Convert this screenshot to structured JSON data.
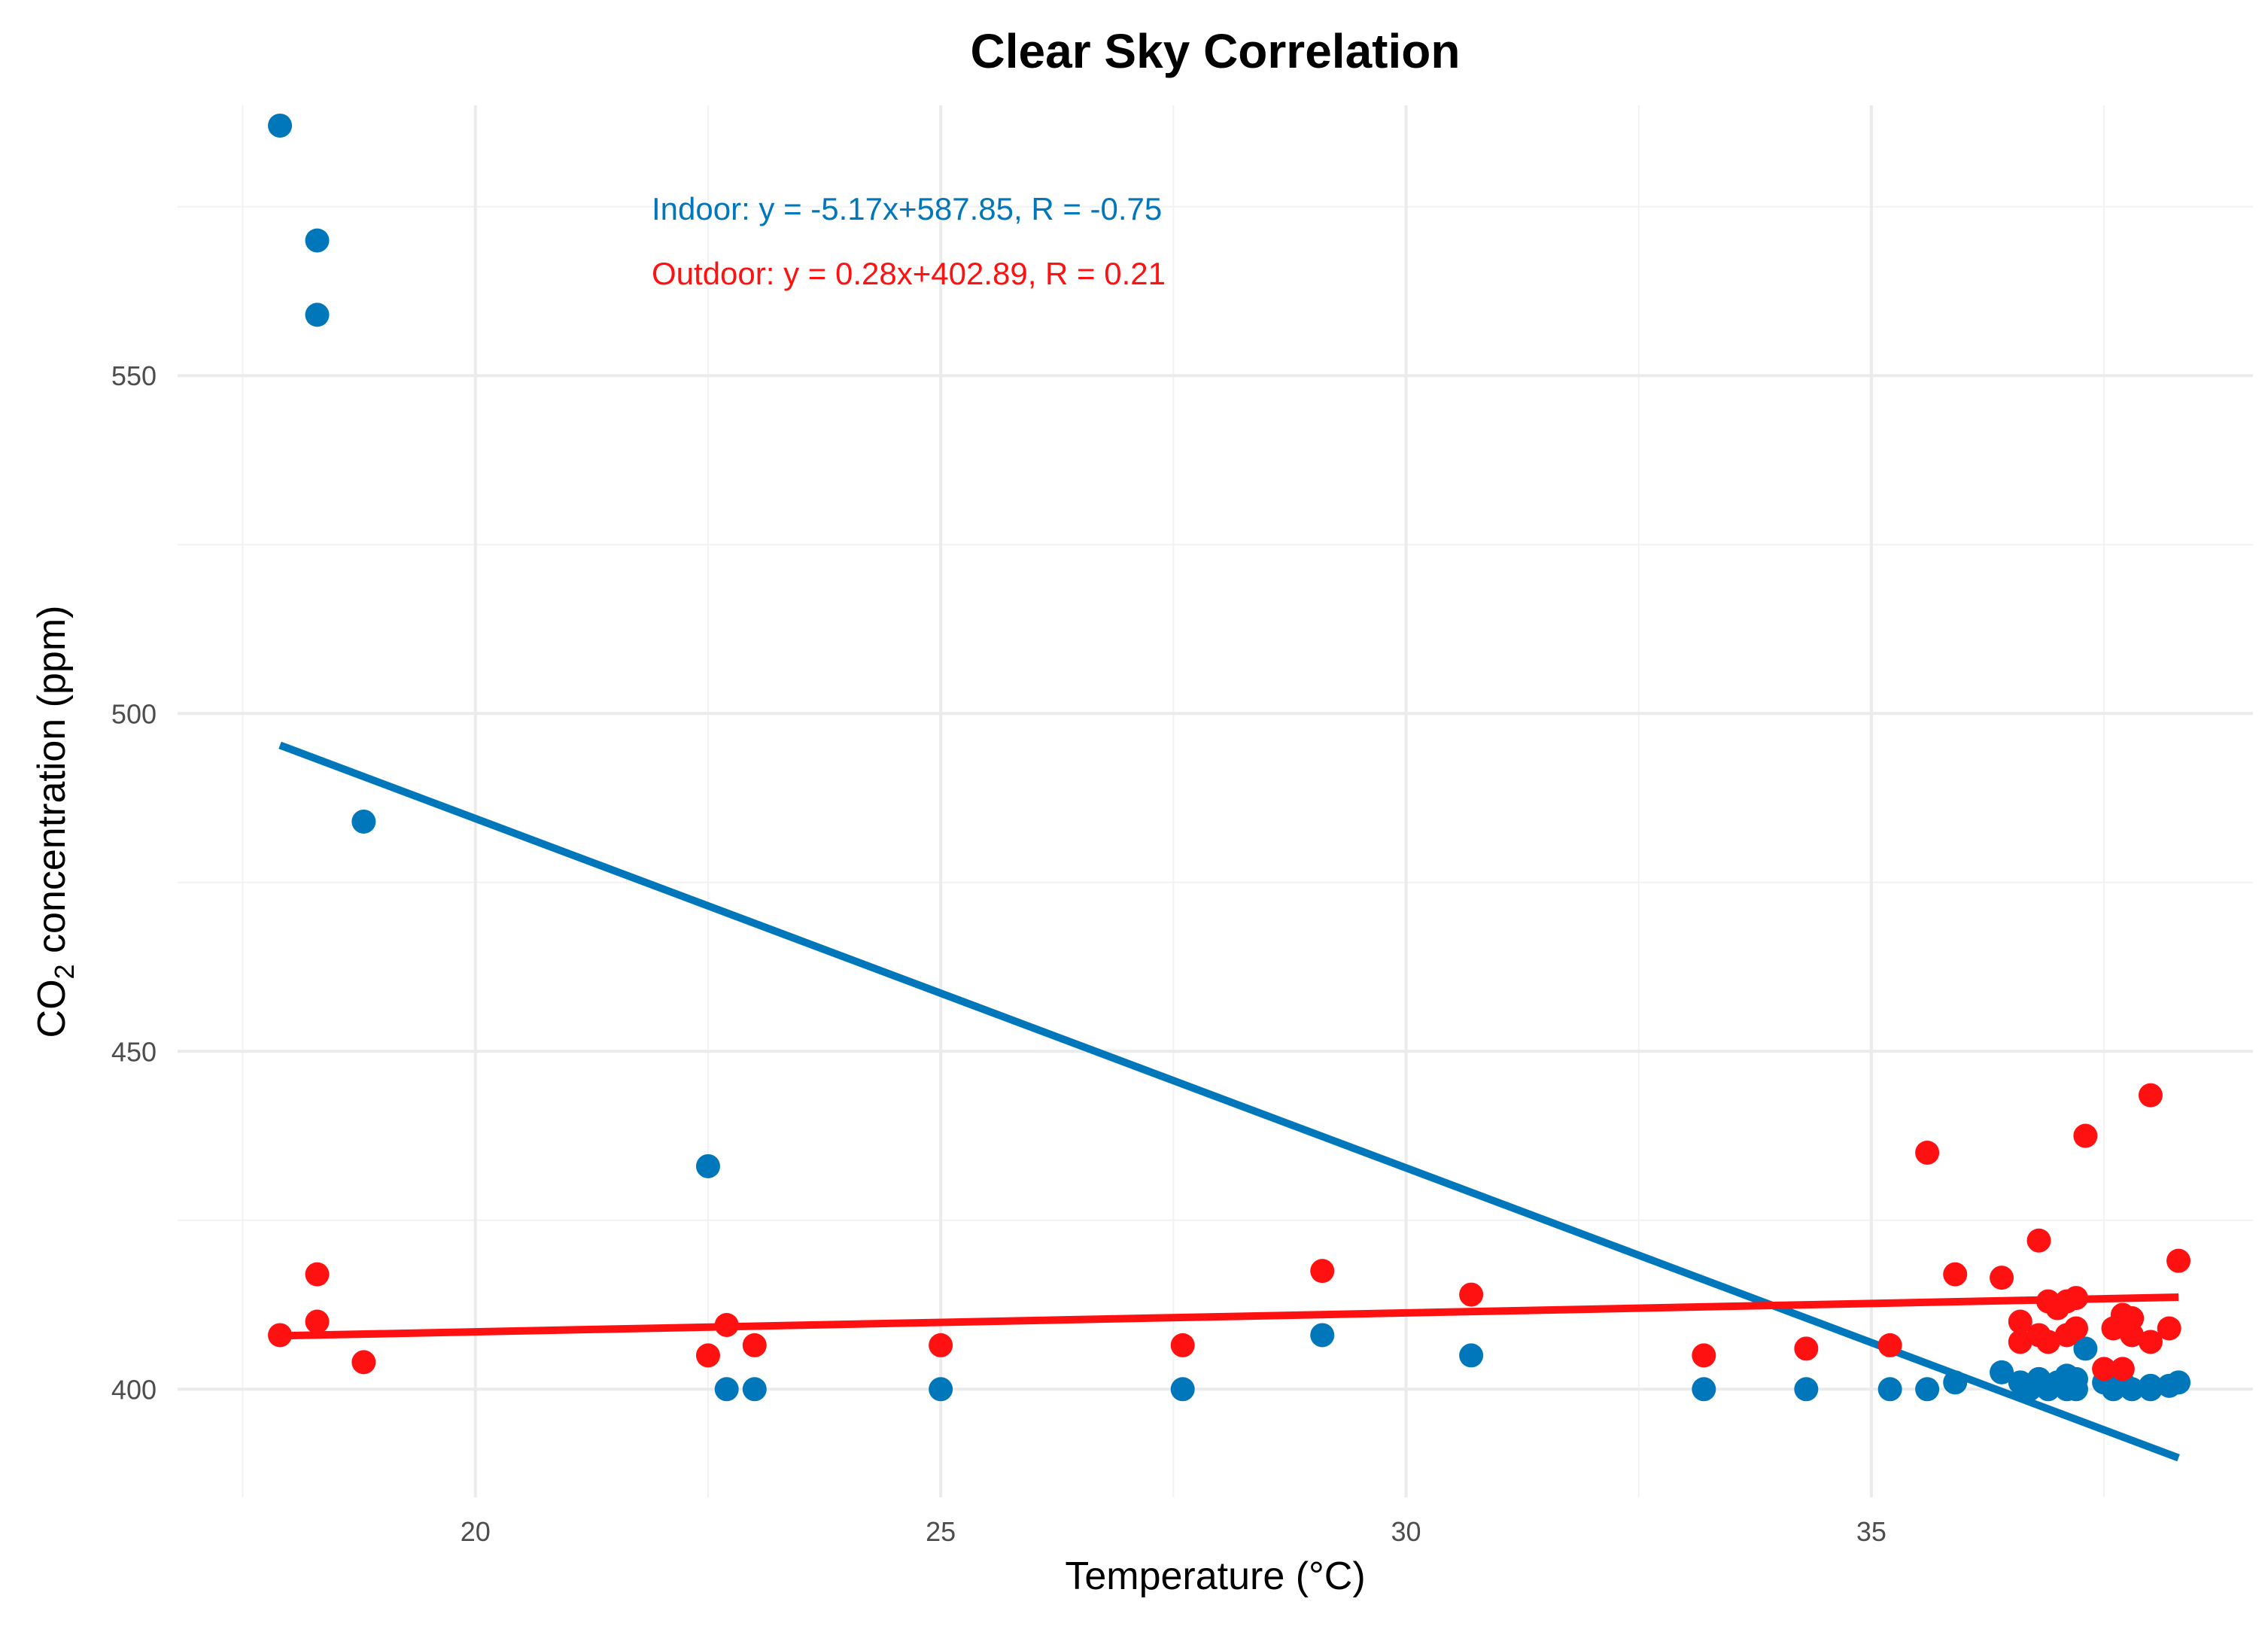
{
  "chart_data": {
    "type": "scatter",
    "title": "Clear Sky Correlation",
    "xlabel": "Temperature (°C)",
    "ylabel_main": "CO",
    "ylabel_sub": "2",
    "ylabel_rest": " concentration (ppm)",
    "xlim": [
      16.8,
      39.1
    ],
    "ylim": [
      384,
      590
    ],
    "x_ticks": [
      20,
      25,
      30,
      35
    ],
    "y_ticks": [
      400,
      450,
      500,
      550
    ],
    "grid": true,
    "annotations": [
      {
        "text": "Indoor: y = -5.17x+587.85, R = -0.75",
        "color": "#0077bb"
      },
      {
        "text": "Outdoor: y = 0.28x+402.89, R = 0.21",
        "color": "#ff1111"
      }
    ],
    "series": [
      {
        "color": "#0077bb",
        "fit": {
          "slope": -5.17,
          "intercept": 587.85,
          "x_range": [
            17.9,
            38.3
          ]
        },
        "points": [
          [
            17.9,
            587
          ],
          [
            18.3,
            570
          ],
          [
            18.3,
            559
          ],
          [
            18.8,
            484
          ],
          [
            22.5,
            433
          ],
          [
            22.7,
            400
          ],
          [
            23.0,
            400
          ],
          [
            25.0,
            400
          ],
          [
            27.6,
            400
          ],
          [
            29.1,
            408
          ],
          [
            30.7,
            405
          ],
          [
            33.2,
            400
          ],
          [
            34.3,
            400
          ],
          [
            35.2,
            400
          ],
          [
            35.6,
            400
          ],
          [
            35.9,
            401
          ],
          [
            36.4,
            402.5
          ],
          [
            36.6,
            401
          ],
          [
            36.7,
            400
          ],
          [
            36.8,
            401.5
          ],
          [
            36.9,
            400
          ],
          [
            37.0,
            401
          ],
          [
            37.1,
            400
          ],
          [
            37.1,
            402
          ],
          [
            37.2,
            401.5
          ],
          [
            37.2,
            400
          ],
          [
            37.3,
            406
          ],
          [
            37.5,
            401
          ],
          [
            37.6,
            400
          ],
          [
            37.7,
            401
          ],
          [
            37.8,
            400
          ],
          [
            38.0,
            400.5
          ],
          [
            38.0,
            400
          ],
          [
            38.2,
            400.5
          ],
          [
            38.3,
            401
          ]
        ]
      },
      {
        "color": "#ff1111",
        "fit": {
          "slope": 0.28,
          "intercept": 402.89,
          "x_range": [
            17.9,
            38.3
          ]
        },
        "points": [
          [
            17.9,
            408
          ],
          [
            18.3,
            417
          ],
          [
            18.3,
            410
          ],
          [
            18.8,
            404
          ],
          [
            22.5,
            405
          ],
          [
            22.7,
            409.5
          ],
          [
            23.0,
            406.5
          ],
          [
            25.0,
            406.5
          ],
          [
            27.6,
            406.5
          ],
          [
            29.1,
            417.5
          ],
          [
            30.7,
            414
          ],
          [
            33.2,
            405
          ],
          [
            34.3,
            406
          ],
          [
            35.2,
            406.5
          ],
          [
            35.6,
            435
          ],
          [
            35.9,
            417
          ],
          [
            36.4,
            416.5
          ],
          [
            36.6,
            410
          ],
          [
            36.6,
            407
          ],
          [
            36.8,
            422
          ],
          [
            36.8,
            408
          ],
          [
            36.9,
            413
          ],
          [
            36.9,
            407
          ],
          [
            37.0,
            412
          ],
          [
            37.1,
            413
          ],
          [
            37.1,
            408
          ],
          [
            37.2,
            409
          ],
          [
            37.2,
            413.5
          ],
          [
            37.3,
            437.5
          ],
          [
            37.5,
            403
          ],
          [
            37.6,
            409
          ],
          [
            37.7,
            403
          ],
          [
            37.7,
            411
          ],
          [
            37.8,
            408
          ],
          [
            37.8,
            410.5
          ],
          [
            38.0,
            443.5
          ],
          [
            38.0,
            407
          ],
          [
            38.2,
            409
          ],
          [
            38.3,
            419
          ]
        ]
      }
    ]
  }
}
